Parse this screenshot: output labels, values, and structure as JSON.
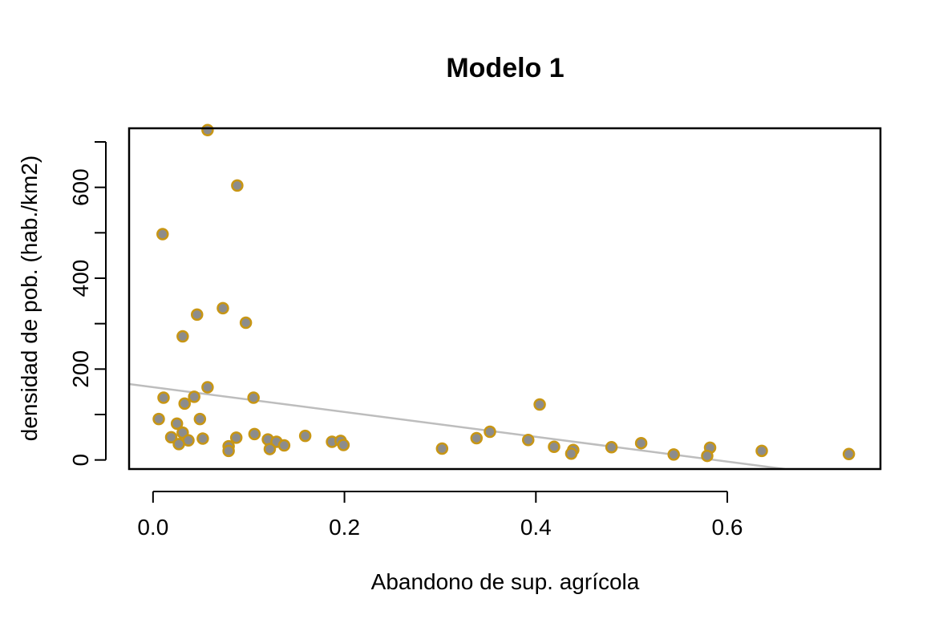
{
  "chart_data": {
    "type": "scatter",
    "title": "Modelo 1",
    "xlabel": "Abandono de sup. agrícola",
    "ylabel": "densidad de pob. (hab./km2)",
    "xlim": [
      -0.025,
      0.76
    ],
    "ylim": [
      -20,
      730
    ],
    "x_ticks": [
      0.0,
      0.2,
      0.4,
      0.6
    ],
    "x_tick_labels": [
      "0.0",
      "0.2",
      "0.4",
      "0.6"
    ],
    "y_ticks": [
      0,
      100,
      200,
      300,
      400,
      500,
      600,
      700
    ],
    "y_tick_labels": [
      "0",
      "",
      "200",
      "",
      "400",
      "",
      "600",
      ""
    ],
    "grid": false,
    "legend": "none",
    "point_fill": "#8c8c8c",
    "point_stroke": "#c89614",
    "trend_color": "#bdbdbd",
    "trend_line": {
      "x": [
        -0.025,
        0.66
      ],
      "y": [
        167,
        -20
      ]
    },
    "points": [
      {
        "x": 0.057,
        "y": 726
      },
      {
        "x": 0.088,
        "y": 604
      },
      {
        "x": 0.01,
        "y": 497
      },
      {
        "x": 0.073,
        "y": 334
      },
      {
        "x": 0.046,
        "y": 320
      },
      {
        "x": 0.097,
        "y": 302
      },
      {
        "x": 0.031,
        "y": 272
      },
      {
        "x": 0.057,
        "y": 160
      },
      {
        "x": 0.011,
        "y": 137
      },
      {
        "x": 0.105,
        "y": 137
      },
      {
        "x": 0.043,
        "y": 139
      },
      {
        "x": 0.033,
        "y": 124
      },
      {
        "x": 0.404,
        "y": 122
      },
      {
        "x": 0.006,
        "y": 90
      },
      {
        "x": 0.049,
        "y": 90
      },
      {
        "x": 0.025,
        "y": 80
      },
      {
        "x": 0.031,
        "y": 60
      },
      {
        "x": 0.352,
        "y": 62
      },
      {
        "x": 0.106,
        "y": 57
      },
      {
        "x": 0.159,
        "y": 53
      },
      {
        "x": 0.019,
        "y": 50
      },
      {
        "x": 0.087,
        "y": 49
      },
      {
        "x": 0.052,
        "y": 47
      },
      {
        "x": 0.338,
        "y": 48
      },
      {
        "x": 0.12,
        "y": 45
      },
      {
        "x": 0.037,
        "y": 43
      },
      {
        "x": 0.392,
        "y": 44
      },
      {
        "x": 0.129,
        "y": 40
      },
      {
        "x": 0.187,
        "y": 40
      },
      {
        "x": 0.196,
        "y": 42
      },
      {
        "x": 0.51,
        "y": 37
      },
      {
        "x": 0.027,
        "y": 35
      },
      {
        "x": 0.137,
        "y": 32
      },
      {
        "x": 0.199,
        "y": 33
      },
      {
        "x": 0.079,
        "y": 30
      },
      {
        "x": 0.122,
        "y": 24
      },
      {
        "x": 0.302,
        "y": 25
      },
      {
        "x": 0.419,
        "y": 29
      },
      {
        "x": 0.479,
        "y": 28
      },
      {
        "x": 0.582,
        "y": 27
      },
      {
        "x": 0.079,
        "y": 20
      },
      {
        "x": 0.439,
        "y": 22
      },
      {
        "x": 0.636,
        "y": 20
      },
      {
        "x": 0.437,
        "y": 14
      },
      {
        "x": 0.544,
        "y": 12
      },
      {
        "x": 0.579,
        "y": 9
      },
      {
        "x": 0.727,
        "y": 13
      }
    ]
  }
}
